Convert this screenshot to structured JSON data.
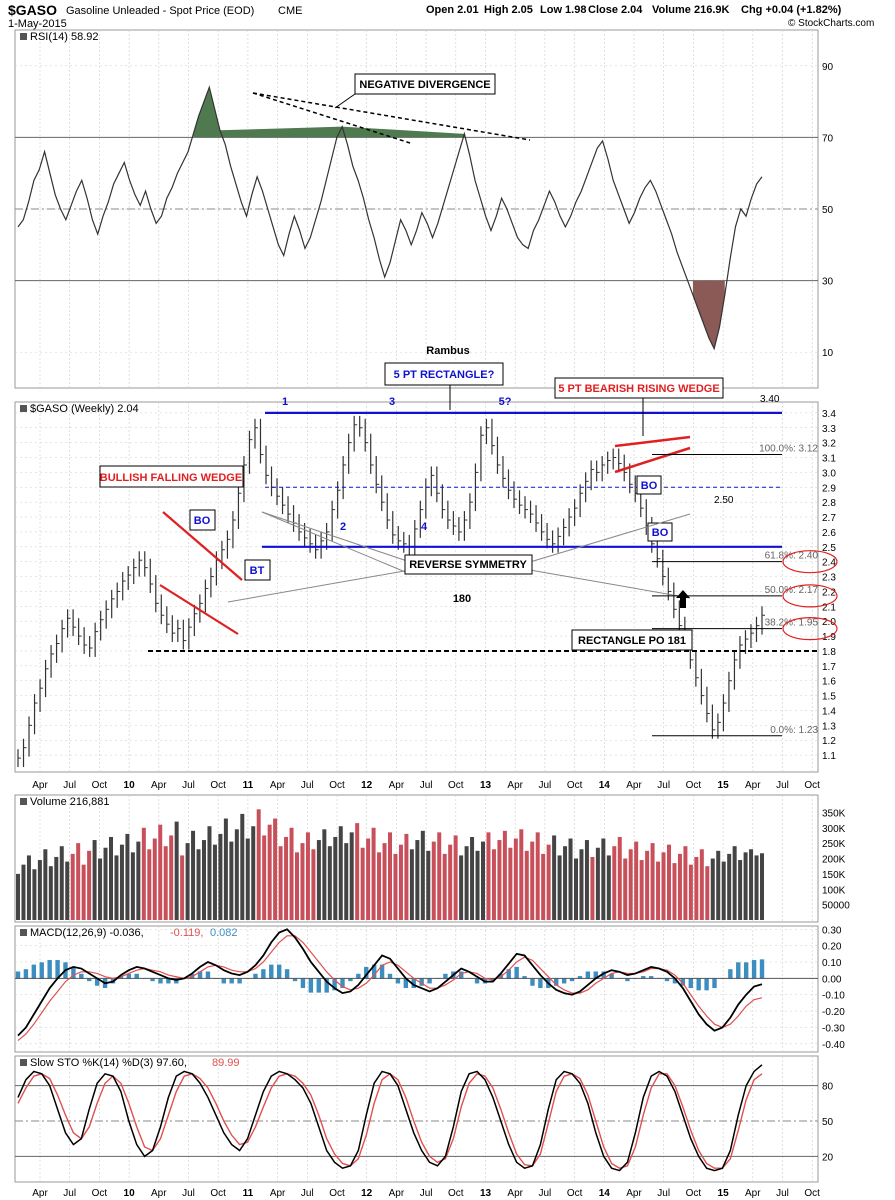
{
  "header": {
    "symbol": "$GASO",
    "description": "Gasoline Unleaded - Spot Price (EOD)",
    "exchange": "CME",
    "date": "1-May-2015",
    "open": "Open 2.01",
    "high": "High 2.05",
    "low": "Low 1.98",
    "close": "Close 2.04",
    "volume": "Volume 216.9K",
    "chg": "Chg +0.04 (+1.82%)",
    "brand": "© StockCharts.com"
  },
  "colors": {
    "bar": "#333333",
    "grid": "#cccccc",
    "blue_line": "#1010d0",
    "red": "#e02020",
    "vol_up": "#444444",
    "vol_down": "#c8505a",
    "macd_hist": "#3d8ec0",
    "signal": "#e05050",
    "rsi_fill_high": "#4f7a4f",
    "rsi_fill_low": "#8b5a56",
    "callout_bg": "#ffffff"
  },
  "time_axis": [
    "Apr",
    "Jul",
    "Oct",
    "10",
    "Apr",
    "Jul",
    "Oct",
    "11",
    "Apr",
    "Jul",
    "Oct",
    "12",
    "Apr",
    "Jul",
    "Oct",
    "13",
    "Apr",
    "Jul",
    "Oct",
    "14",
    "Apr",
    "Jul",
    "Oct",
    "15",
    "Apr",
    "Jul",
    "Oct"
  ],
  "panels": {
    "rsi_label": "RSI(14) 58.92",
    "price_label": "$GASO (Weekly) 2.04",
    "volume_label": "Volume 216,881",
    "macd_label_main": "MACD(12,26,9) -0.036,",
    "macd_label_sig": "-0.119,",
    "macd_label_hist": "0.082",
    "sto_label_main": "Slow STO %K(14) %D(3) 97.60,",
    "sto_label_d": "89.99"
  },
  "annotations": {
    "neg_div": "NEGATIVE DIVERGENCE",
    "rambus": "Rambus",
    "five_pt_rect": "5 PT RECTANGLE?",
    "bearish_wedge": "5 PT BEARISH RISING WEDGE",
    "bullish_wedge": "BULLISH FALLING WEDGE",
    "rev_sym": "REVERSE SYMMETRY",
    "rect_po": "RECTANGLE PO 181",
    "bo": "BO",
    "bt": "BT",
    "pt1": "1",
    "pt2": "2",
    "pt3": "3",
    "pt4": "4",
    "pt5": "5?",
    "lvl_340": "3.40",
    "lvl_250": "2.50",
    "lvl_180": "180",
    "fib_100": "100.0%: 3.12",
    "fib_618": "61.8%: 2.40",
    "fib_50": "50.0%: 2.17",
    "fib_382": "38.2%: 1.95",
    "fib_0": "0.0%: 1.23"
  },
  "chart_data": [
    {
      "type": "line",
      "title": "RSI(14) 58.92",
      "ylim": [
        0,
        100
      ],
      "y_ticks": [
        10,
        30,
        50,
        70,
        90
      ],
      "reference_lines": [
        30,
        50,
        70
      ],
      "values": [
        45,
        47,
        52,
        58,
        61,
        66,
        60,
        54,
        50,
        47,
        51,
        55,
        58,
        53,
        47,
        43,
        48,
        52,
        57,
        60,
        63,
        58,
        54,
        51,
        55,
        50,
        46,
        48,
        53,
        56,
        60,
        63,
        66,
        71,
        76,
        80,
        84,
        78,
        72,
        68,
        62,
        57,
        52,
        48,
        54,
        59,
        55,
        50,
        45,
        40,
        37,
        43,
        48,
        44,
        39,
        42,
        47,
        52,
        58,
        64,
        70,
        73,
        68,
        62,
        58,
        53,
        47,
        42,
        36,
        31,
        35,
        41,
        47,
        44,
        40,
        44,
        49,
        46,
        42,
        46,
        51,
        56,
        61,
        66,
        71,
        65,
        58,
        53,
        48,
        44,
        48,
        53,
        50,
        46,
        42,
        40,
        39,
        44,
        47,
        51,
        55,
        52,
        48,
        45,
        48,
        52,
        55,
        59,
        63,
        67,
        69,
        64,
        58,
        54,
        50,
        46,
        49,
        53,
        56,
        58,
        55,
        51,
        47,
        43,
        38,
        34,
        30,
        26,
        22,
        18,
        14,
        11,
        17,
        26,
        36,
        45,
        50,
        48,
        53,
        57,
        59
      ]
    },
    {
      "type": "ohlc",
      "title": "$GASO (Weekly) 2.04",
      "ylim": [
        1.0,
        3.5
      ],
      "y_ticks": [
        1.1,
        1.2,
        1.3,
        1.4,
        1.5,
        1.6,
        1.7,
        1.8,
        1.9,
        2.0,
        2.1,
        2.2,
        2.3,
        2.4,
        2.5,
        2.6,
        2.7,
        2.8,
        2.9,
        3.0,
        3.1,
        3.2,
        3.3,
        3.4
      ],
      "closes": [
        1.08,
        1.15,
        1.3,
        1.45,
        1.55,
        1.68,
        1.78,
        1.85,
        1.95,
        2.02,
        1.96,
        1.9,
        1.84,
        1.82,
        1.93,
        2.01,
        2.08,
        2.15,
        2.2,
        2.27,
        2.31,
        2.36,
        2.41,
        2.36,
        2.25,
        2.12,
        2.04,
        1.98,
        1.92,
        1.95,
        1.87,
        1.96,
        2.05,
        2.12,
        2.22,
        2.3,
        2.41,
        2.48,
        2.55,
        2.68,
        2.86,
        3.05,
        3.22,
        3.3,
        3.12,
        2.98,
        2.9,
        2.84,
        2.78,
        2.72,
        2.66,
        2.6,
        2.56,
        2.52,
        2.48,
        2.54,
        2.6,
        2.75,
        2.88,
        3.05,
        3.2,
        3.32,
        3.3,
        3.2,
        3.05,
        2.92,
        2.8,
        2.68,
        2.58,
        2.54,
        2.52,
        2.5,
        2.62,
        2.75,
        2.9,
        2.98,
        2.86,
        2.75,
        2.68,
        2.64,
        2.6,
        2.68,
        2.8,
        3.0,
        3.25,
        3.3,
        3.18,
        3.05,
        2.96,
        2.88,
        2.82,
        2.78,
        2.75,
        2.72,
        2.66,
        2.6,
        2.55,
        2.52,
        2.57,
        2.63,
        2.7,
        2.76,
        2.86,
        2.94,
        3.02,
        3.0,
        3.05,
        3.08,
        3.1,
        3.06,
        3.0,
        2.92,
        2.86,
        2.76,
        2.64,
        2.52,
        2.42,
        2.3,
        2.2,
        2.08,
        1.97,
        1.86,
        1.74,
        1.62,
        1.5,
        1.38,
        1.27,
        1.32,
        1.45,
        1.6,
        1.74,
        1.84,
        1.88,
        1.92,
        1.97,
        2.04
      ]
    },
    {
      "type": "bar",
      "title": "Volume 216,881",
      "ylim": [
        0,
        400000
      ],
      "y_ticks": [
        50000,
        100000,
        150000,
        200000,
        250000,
        300000,
        350000
      ],
      "values": [
        150000,
        180000,
        210000,
        165000,
        195000,
        230000,
        175000,
        205000,
        240000,
        190000,
        215000,
        250000,
        180000,
        225000,
        260000,
        200000,
        235000,
        270000,
        210000,
        245000,
        280000,
        220000,
        255000,
        300000,
        230000,
        265000,
        310000,
        240000,
        275000,
        320000,
        210000,
        250000,
        290000,
        230000,
        260000,
        305000,
        245000,
        280000,
        330000,
        255000,
        295000,
        345000,
        265000,
        305000,
        360000,
        275000,
        310000,
        330000,
        240000,
        270000,
        300000,
        220000,
        250000,
        285000,
        230000,
        260000,
        295000,
        240000,
        270000,
        305000,
        250000,
        285000,
        315000,
        235000,
        265000,
        300000,
        220000,
        250000,
        285000,
        215000,
        245000,
        280000,
        230000,
        260000,
        290000,
        225000,
        255000,
        285000,
        215000,
        245000,
        275000,
        210000,
        240000,
        270000,
        225000,
        255000,
        285000,
        230000,
        260000,
        290000,
        235000,
        265000,
        295000,
        225000,
        255000,
        285000,
        215000,
        245000,
        275000,
        210000,
        240000,
        265000,
        200000,
        230000,
        260000,
        205000,
        235000,
        265000,
        210000,
        240000,
        270000,
        200000,
        230000,
        255000,
        195000,
        225000,
        250000,
        190000,
        220000,
        245000,
        185000,
        215000,
        240000,
        180000,
        205000,
        230000,
        175000,
        200000,
        225000,
        190000,
        215000,
        240000,
        195000,
        220000,
        230000,
        210000,
        217000
      ]
    },
    {
      "type": "line",
      "title": "MACD(12,26,9)",
      "ylim": [
        -0.45,
        0.32
      ],
      "y_ticks": [
        -0.4,
        -0.3,
        -0.2,
        -0.1,
        0.0,
        0.1,
        0.2,
        0.3
      ],
      "macd": [
        -0.35,
        -0.3,
        -0.22,
        -0.14,
        -0.06,
        0.0,
        0.05,
        0.07,
        0.06,
        0.03,
        0.0,
        -0.03,
        -0.02,
        0.02,
        0.05,
        0.07,
        0.06,
        0.04,
        0.02,
        0.0,
        -0.01,
        0.0,
        0.03,
        0.07,
        0.1,
        0.08,
        0.05,
        0.03,
        0.02,
        0.04,
        0.08,
        0.14,
        0.22,
        0.28,
        0.3,
        0.25,
        0.18,
        0.1,
        0.04,
        -0.02,
        -0.06,
        -0.09,
        -0.08,
        -0.04,
        0.02,
        0.08,
        0.14,
        0.12,
        0.06,
        0.0,
        -0.04,
        -0.06,
        -0.08,
        -0.06,
        -0.02,
        0.02,
        0.06,
        0.04,
        0.01,
        -0.02,
        -0.02,
        0.03,
        0.09,
        0.15,
        0.14,
        0.08,
        0.02,
        -0.03,
        -0.07,
        -0.09,
        -0.1,
        -0.08,
        -0.04,
        0.0,
        0.03,
        0.05,
        0.04,
        0.02,
        0.03,
        0.05,
        0.07,
        0.06,
        0.04,
        0.0,
        -0.06,
        -0.14,
        -0.22,
        -0.28,
        -0.32,
        -0.3,
        -0.24,
        -0.16,
        -0.1,
        -0.05,
        -0.036
      ],
      "signal": [
        -0.38,
        -0.34,
        -0.28,
        -0.21,
        -0.14,
        -0.08,
        -0.02,
        0.02,
        0.04,
        0.04,
        0.03,
        0.01,
        0.0,
        0.01,
        0.03,
        0.05,
        0.06,
        0.05,
        0.04,
        0.02,
        0.01,
        0.0,
        0.01,
        0.04,
        0.07,
        0.08,
        0.07,
        0.05,
        0.04,
        0.04,
        0.06,
        0.1,
        0.16,
        0.22,
        0.26,
        0.26,
        0.22,
        0.16,
        0.1,
        0.04,
        -0.01,
        -0.05,
        -0.07,
        -0.06,
        -0.03,
        0.02,
        0.08,
        0.1,
        0.08,
        0.04,
        0.0,
        -0.03,
        -0.06,
        -0.06,
        -0.04,
        -0.01,
        0.03,
        0.04,
        0.03,
        0.0,
        -0.01,
        0.01,
        0.05,
        0.1,
        0.13,
        0.11,
        0.06,
        0.01,
        -0.04,
        -0.07,
        -0.09,
        -0.09,
        -0.07,
        -0.03,
        0.0,
        0.03,
        0.04,
        0.03,
        0.03,
        0.04,
        0.06,
        0.06,
        0.05,
        0.02,
        -0.03,
        -0.1,
        -0.17,
        -0.23,
        -0.28,
        -0.3,
        -0.28,
        -0.23,
        -0.17,
        -0.13,
        -0.119
      ]
    },
    {
      "type": "line",
      "title": "Slow STO %K(14) %D(3)",
      "ylim": [
        0,
        100
      ],
      "y_ticks": [
        20,
        50,
        80
      ],
      "reference_lines": [
        20,
        50,
        80
      ],
      "k": [
        70,
        85,
        92,
        90,
        80,
        60,
        40,
        30,
        35,
        60,
        82,
        90,
        88,
        75,
        50,
        30,
        20,
        25,
        45,
        70,
        88,
        92,
        90,
        82,
        70,
        55,
        40,
        30,
        25,
        35,
        55,
        75,
        88,
        92,
        90,
        85,
        78,
        65,
        45,
        25,
        15,
        10,
        12,
        25,
        55,
        82,
        92,
        90,
        80,
        60,
        40,
        25,
        15,
        12,
        20,
        45,
        75,
        90,
        92,
        85,
        70,
        50,
        30,
        15,
        10,
        12,
        30,
        60,
        85,
        92,
        90,
        82,
        65,
        40,
        20,
        10,
        8,
        15,
        40,
        70,
        88,
        92,
        88,
        75,
        55,
        35,
        20,
        10,
        8,
        10,
        25,
        55,
        80,
        92,
        97.6
      ],
      "d": [
        65,
        78,
        88,
        90,
        86,
        72,
        55,
        40,
        35,
        45,
        65,
        82,
        88,
        82,
        65,
        45,
        28,
        25,
        35,
        55,
        75,
        88,
        90,
        86,
        78,
        65,
        50,
        38,
        30,
        32,
        45,
        62,
        78,
        88,
        90,
        88,
        82,
        72,
        55,
        35,
        22,
        14,
        12,
        18,
        38,
        65,
        85,
        90,
        85,
        70,
        50,
        32,
        20,
        15,
        18,
        35,
        62,
        82,
        90,
        88,
        78,
        60,
        40,
        22,
        13,
        12,
        22,
        48,
        75,
        88,
        90,
        86,
        72,
        50,
        28,
        14,
        10,
        12,
        28,
        55,
        78,
        90,
        90,
        80,
        62,
        42,
        25,
        14,
        10,
        10,
        18,
        42,
        68,
        85,
        89.99
      ]
    }
  ]
}
